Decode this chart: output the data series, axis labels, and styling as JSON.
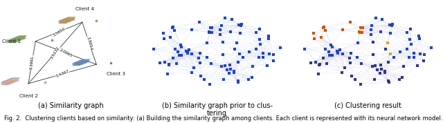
{
  "caption_a": "(a) Similarity graph",
  "caption_b": "(b) Similarity graph prior to clus-\ntering",
  "caption_c": "(c) Clustering result",
  "fig_caption": "Fig. 2.  Clustering clients based on similarity: (a) Building the similarity graph among clients. Each client is represented with its neural network model. The",
  "caption_fontsize": 7.0,
  "fig_caption_fontsize": 6.0,
  "background_color": "#ffffff",
  "edge_color_b": "#d0d8f0",
  "edge_color_c": "#d8d8e8",
  "dot_blue": "#2244bb",
  "dot_dark": "#333388",
  "dot_orange": "#cc5500",
  "dot_yellow": "#ddaa00",
  "seed": 7
}
